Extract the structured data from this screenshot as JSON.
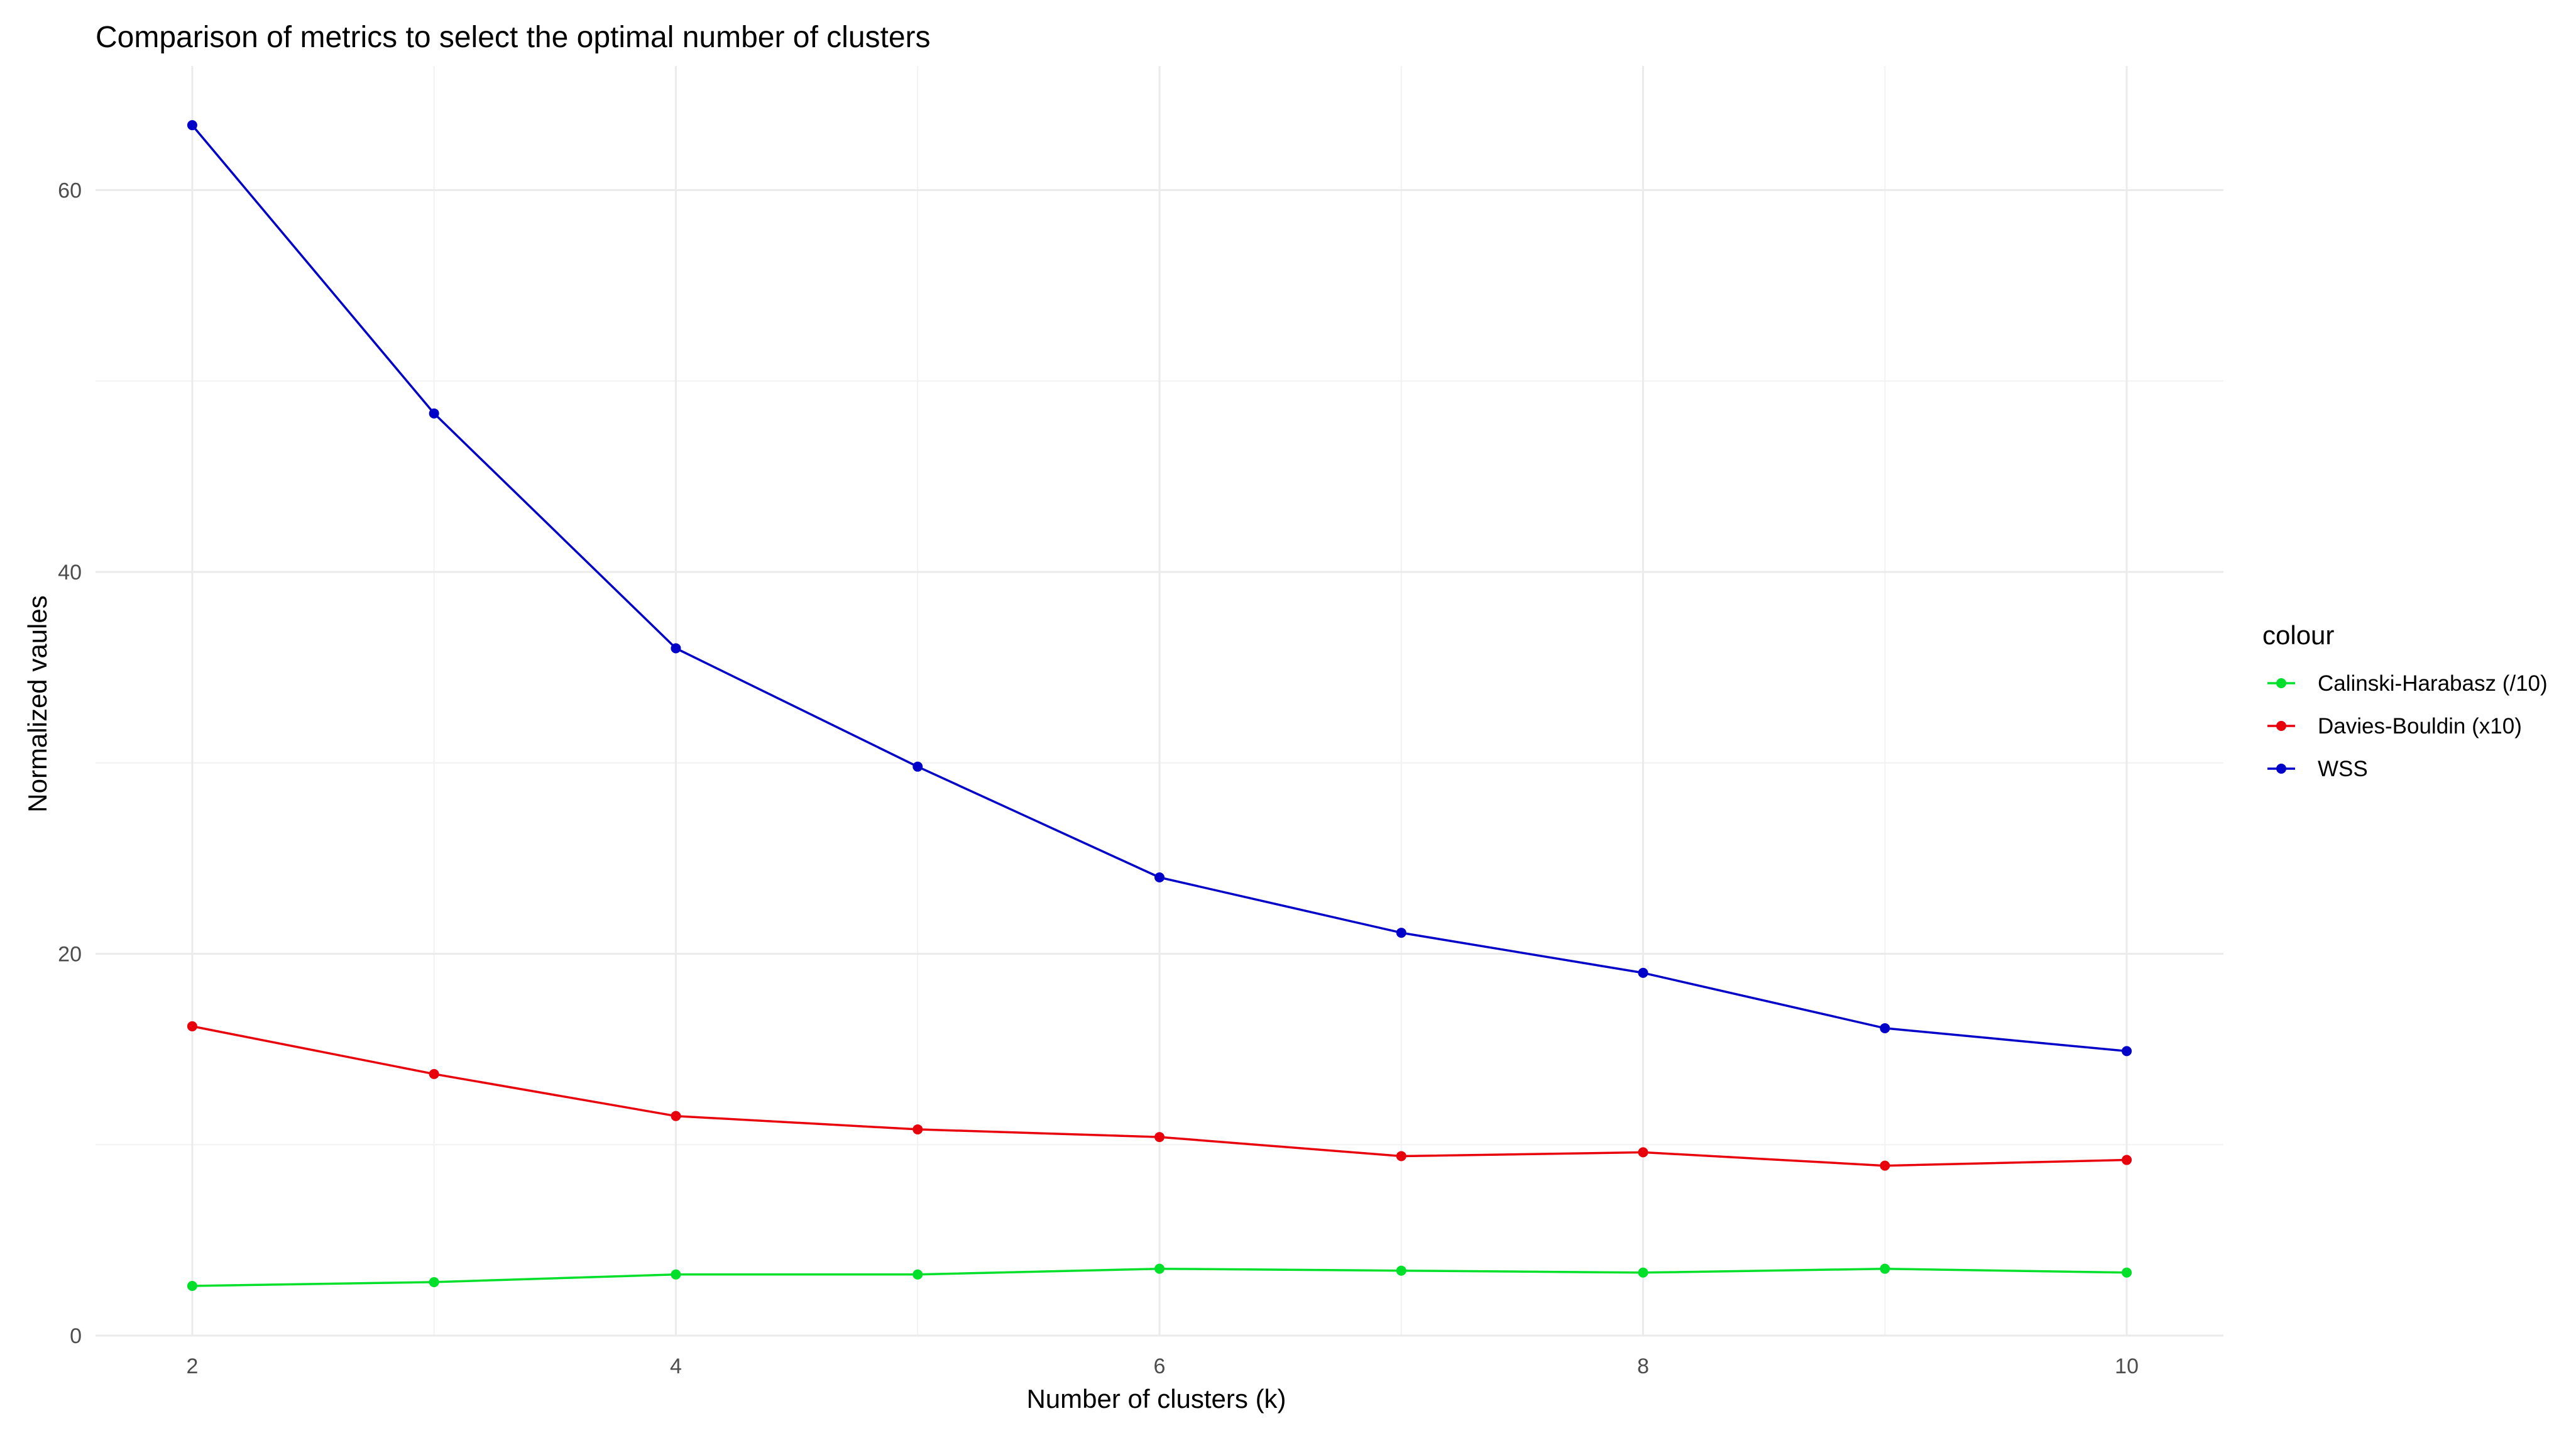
{
  "chart_data": {
    "type": "line",
    "title": "Comparison of metrics to select the optimal number of clusters",
    "xlabel": "Number of clusters (k)",
    "ylabel": "Normalized vaules",
    "x": [
      2,
      3,
      4,
      5,
      6,
      7,
      8,
      9,
      10
    ],
    "xlim": [
      1.6,
      10.4
    ],
    "ylim": [
      0,
      66.5
    ],
    "x_ticks": [
      2,
      4,
      6,
      8,
      10
    ],
    "y_ticks": [
      0,
      20,
      40,
      60
    ],
    "grid": true,
    "legend": {
      "title": "colour",
      "position": "right"
    },
    "series": [
      {
        "name": "Calinski-Harabasz (/10)",
        "color": "#00e02b",
        "values": [
          2.6,
          2.8,
          3.2,
          3.2,
          3.5,
          3.4,
          3.3,
          3.5,
          3.3
        ]
      },
      {
        "name": "Davies-Bouldin (x10)",
        "color": "#e8000b",
        "values": [
          16.2,
          13.7,
          11.5,
          10.8,
          10.4,
          9.4,
          9.6,
          8.9,
          9.2
        ]
      },
      {
        "name": "WSS",
        "color": "#0000c8",
        "values": [
          63.4,
          48.3,
          36.0,
          29.8,
          24.0,
          21.1,
          19.0,
          16.1,
          14.9
        ]
      }
    ]
  }
}
